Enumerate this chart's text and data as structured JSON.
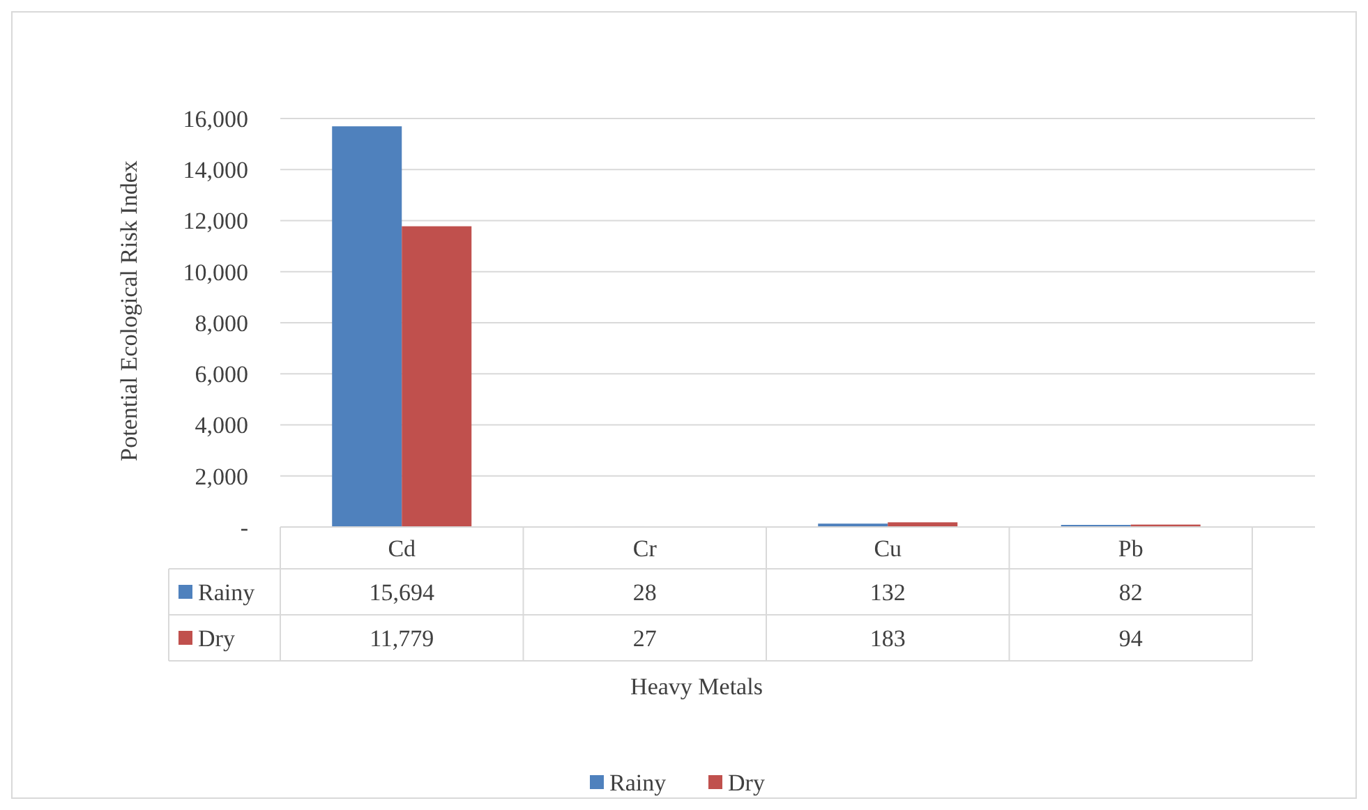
{
  "chart_data": {
    "type": "bar",
    "xlabel": "Heavy Metals",
    "ylabel": "Potential Ecological Risk Index",
    "categories": [
      "Cd",
      "Cr",
      "Cu",
      "Pb"
    ],
    "series": [
      {
        "name": "Rainy",
        "color": "#4f81bd",
        "values": [
          15694,
          28,
          132,
          82
        ],
        "value_labels": [
          "15,694",
          "28",
          "132",
          "82"
        ]
      },
      {
        "name": "Dry",
        "color": "#c0504d",
        "values": [
          11779,
          27,
          183,
          94
        ],
        "value_labels": [
          "11,779",
          "27",
          "183",
          "94"
        ]
      }
    ],
    "ylim": [
      0,
      16000
    ],
    "yticks": [
      {
        "value": 0,
        "label": "-"
      },
      {
        "value": 2000,
        "label": "2,000"
      },
      {
        "value": 4000,
        "label": "4,000"
      },
      {
        "value": 6000,
        "label": "6,000"
      },
      {
        "value": 8000,
        "label": "8,000"
      },
      {
        "value": 10000,
        "label": "10,000"
      },
      {
        "value": 12000,
        "label": "12,000"
      },
      {
        "value": 14000,
        "label": "14,000"
      },
      {
        "value": 16000,
        "label": "16,000"
      }
    ],
    "grid": "y",
    "legend": "bottom"
  }
}
